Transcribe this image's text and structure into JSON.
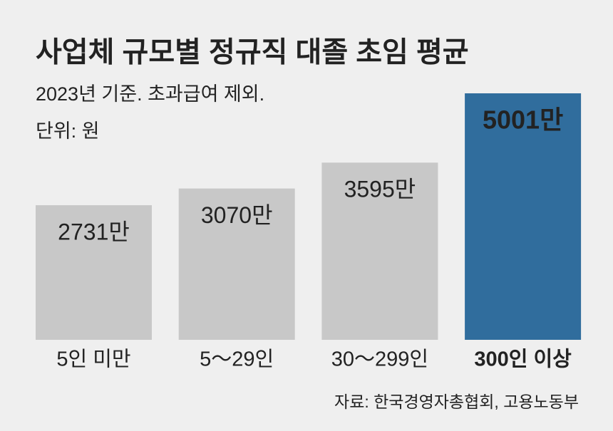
{
  "chart_data": {
    "type": "bar",
    "title": "사업체 규모별 정규직 대졸 초임 평균",
    "subtitle": [
      "2023년 기준. 초과급여 제외.",
      "단위: 원"
    ],
    "categories": [
      "5인 미만",
      "5～29인",
      "30～299인",
      "300인 이상"
    ],
    "values": [
      2731,
      3070,
      3595,
      5001
    ],
    "value_labels": [
      "2731만",
      "3070만",
      "3595만",
      "5001만"
    ],
    "color": "#c8c8c8",
    "highlight_color": "#306d9d",
    "highlight_index": 3,
    "source": "자료: 한국경영자총협회, 고용노동부"
  }
}
